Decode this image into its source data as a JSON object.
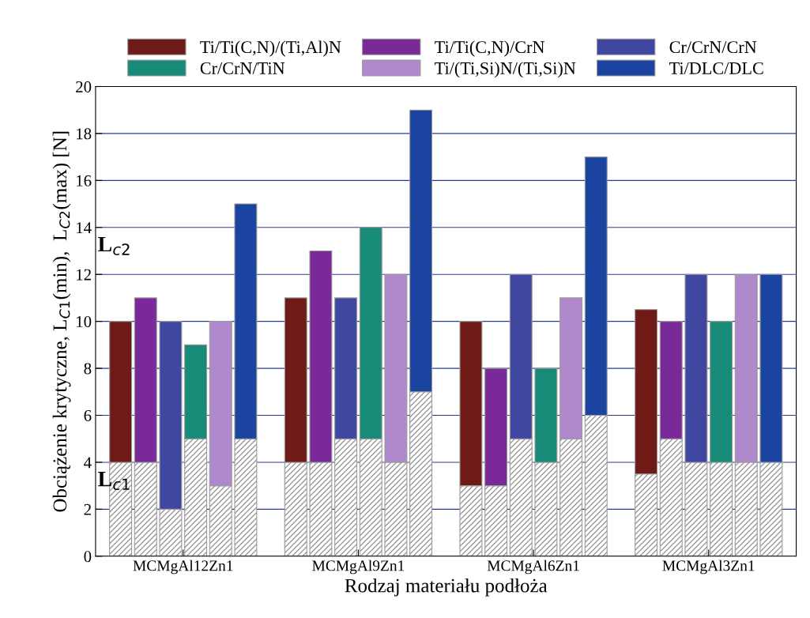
{
  "chart_data": {
    "type": "bar",
    "stacked": true,
    "xlabel": "Rodzaj materiału podłoża",
    "ylabel": "Obciążenie krytyczne, L$_{C1}$(min),  L$_{C2}$(max) [N]",
    "categories": [
      null,
      null,
      null,
      null,
      null,
      null,
      null,
      null,
      null,
      null,
      null,
      null,
      null,
      null,
      null,
      null,
      null,
      null,
      null,
      null,
      null,
      null,
      null,
      null,
      null,
      null,
      null
    ],
    "series": [
      {
        "color": "#9a9a9a",
        "values": [
          4,
          4,
          2,
          5,
          3,
          5,
          null,
          4,
          4,
          5,
          5,
          4,
          7,
          null,
          3,
          3,
          5,
          4,
          5,
          6,
          null,
          3.5,
          5,
          4,
          4,
          4,
          4
        ]
      },
      {
        "name": "Ti/Ti(C,N)/(Ti,Al)N",
        "color": "#6e1a16",
        "values": [
          6,
          null,
          null,
          null,
          null,
          null,
          null,
          7,
          null,
          null,
          null,
          null,
          null,
          null,
          7,
          null,
          null,
          null,
          null,
          null,
          null,
          7,
          null,
          null,
          null,
          null,
          null
        ]
      },
      {
        "name": "Ti/Ti(C,N)/CrN",
        "color": "#7a2a98",
        "values": [
          null,
          7,
          null,
          null,
          null,
          null,
          null,
          null,
          9,
          null,
          null,
          null,
          null,
          null,
          null,
          5,
          null,
          null,
          null,
          null,
          null,
          null,
          5,
          null,
          null,
          null,
          null
        ]
      },
      {
        "name": "Cr/CrN/CrN",
        "color": "#3f47a0",
        "values": [
          null,
          null,
          8,
          null,
          null,
          null,
          null,
          null,
          null,
          6,
          null,
          null,
          null,
          null,
          null,
          null,
          7,
          null,
          null,
          null,
          null,
          null,
          null,
          8,
          null,
          null,
          null
        ]
      },
      {
        "name": "Cr/CrN/TiN",
        "color": "#178a78",
        "values": [
          null,
          null,
          null,
          4,
          null,
          null,
          null,
          null,
          null,
          null,
          9,
          null,
          null,
          null,
          null,
          null,
          null,
          4,
          null,
          null,
          null,
          null,
          null,
          null,
          6,
          null,
          null
        ]
      },
      {
        "name": "Ti/(Ti,Si)N/(Ti,Si)N",
        "color": "#b089cc",
        "values": [
          null,
          null,
          null,
          null,
          7,
          null,
          null,
          null,
          null,
          null,
          null,
          8,
          null,
          null,
          null,
          null,
          null,
          null,
          6,
          null,
          null,
          null,
          null,
          null,
          null,
          8,
          null
        ]
      },
      {
        "name": "Ti/DLC/DLC",
        "color": "#1a44a0",
        "values": [
          null,
          null,
          null,
          null,
          null,
          10,
          null,
          null,
          null,
          null,
          null,
          null,
          12,
          null,
          null,
          null,
          null,
          null,
          null,
          11,
          null,
          null,
          null,
          null,
          null,
          null,
          8
        ]
      }
    ],
    "ylim": [
      0,
      20
    ],
    "yticks": [
      0,
      2,
      4,
      6,
      8,
      10,
      12,
      14,
      16,
      18,
      20
    ],
    "grid": "y",
    "legend": "top",
    "annotations": [
      "L$_{c2}$",
      "L$_{c1}$",
      "MCMgAl12Zn1",
      "MCMgAl9Zn1",
      "MCMgAl6Zn1",
      "MCMgAl3Zn1"
    ]
  }
}
